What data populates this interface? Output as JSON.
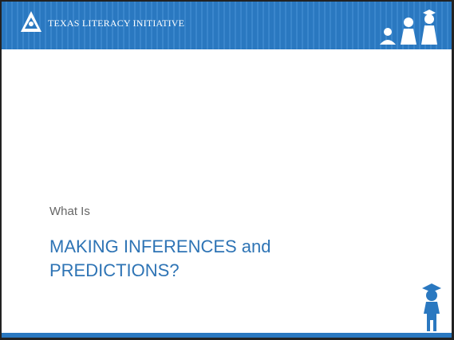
{
  "header": {
    "organization": "TEXAS LITERACY INITIATIVE"
  },
  "slide": {
    "subtitle": "What Is",
    "title_lines": [
      "MAKING INFERENCES and",
      "PREDICTIONS?"
    ]
  }
}
